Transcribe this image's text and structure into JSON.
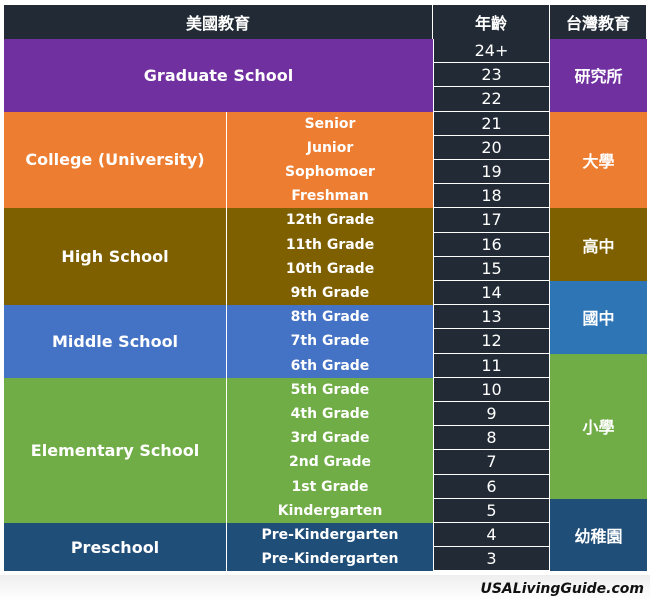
{
  "header": {
    "us": "美國教育",
    "age": "年齡",
    "tw": "台灣教育"
  },
  "colors": {
    "header": "#222b35",
    "graduate": "#7030a0",
    "college": "#ed7d31",
    "high": "#7f6000",
    "middle": "#4472c4",
    "elementary": "#70ad47",
    "preschool": "#1f4e79",
    "tw_junior_high": "#2e75b6"
  },
  "levels": [
    {
      "key": "graduate",
      "label": "Graduate School",
      "color": "#7030a0",
      "span": 3,
      "grades": []
    },
    {
      "key": "college",
      "label": "College (University)",
      "color": "#ed7d31",
      "span": 4,
      "grades": [
        "Senior",
        "Junior",
        "Sophomoer",
        "Freshman"
      ]
    },
    {
      "key": "high",
      "label": "High School",
      "color": "#7f6000",
      "span": 4,
      "grades": [
        "12th Grade",
        "11th Grade",
        "10th Grade",
        "9th Grade"
      ]
    },
    {
      "key": "middle",
      "label": "Middle School",
      "color": "#4472c4",
      "span": 3,
      "grades": [
        "8th Grade",
        "7th Grade",
        "6th Grade"
      ]
    },
    {
      "key": "elementary",
      "label": "Elementary School",
      "color": "#70ad47",
      "span": 6,
      "grades": [
        "5th Grade",
        "4th Grade",
        "3rd Grade",
        "2nd Grade",
        "1st Grade",
        "Kindergarten"
      ]
    },
    {
      "key": "preschool",
      "label": "Preschool",
      "color": "#1f4e79",
      "span": 2,
      "grades": [
        "Pre-Kindergarten",
        "Pre-Kindergarten"
      ]
    }
  ],
  "ages": [
    "24+",
    "23",
    "22",
    "21",
    "20",
    "19",
    "18",
    "17",
    "16",
    "15",
    "14",
    "13",
    "12",
    "11",
    "10",
    "9",
    "8",
    "7",
    "6",
    "5",
    "4",
    "3"
  ],
  "taiwan": [
    {
      "label": "研究所",
      "color": "#7030a0",
      "span": 3
    },
    {
      "label": "大學",
      "color": "#ed7d31",
      "span": 4
    },
    {
      "label": "高中",
      "color": "#7f6000",
      "span": 3
    },
    {
      "label": "國中",
      "color": "#2e75b6",
      "span": 3
    },
    {
      "label": "小學",
      "color": "#70ad47",
      "span": 6
    },
    {
      "label": "幼稚園",
      "color": "#1f4e79",
      "span": 3
    }
  ],
  "footer": {
    "credit": "USALivingGuide.com"
  }
}
